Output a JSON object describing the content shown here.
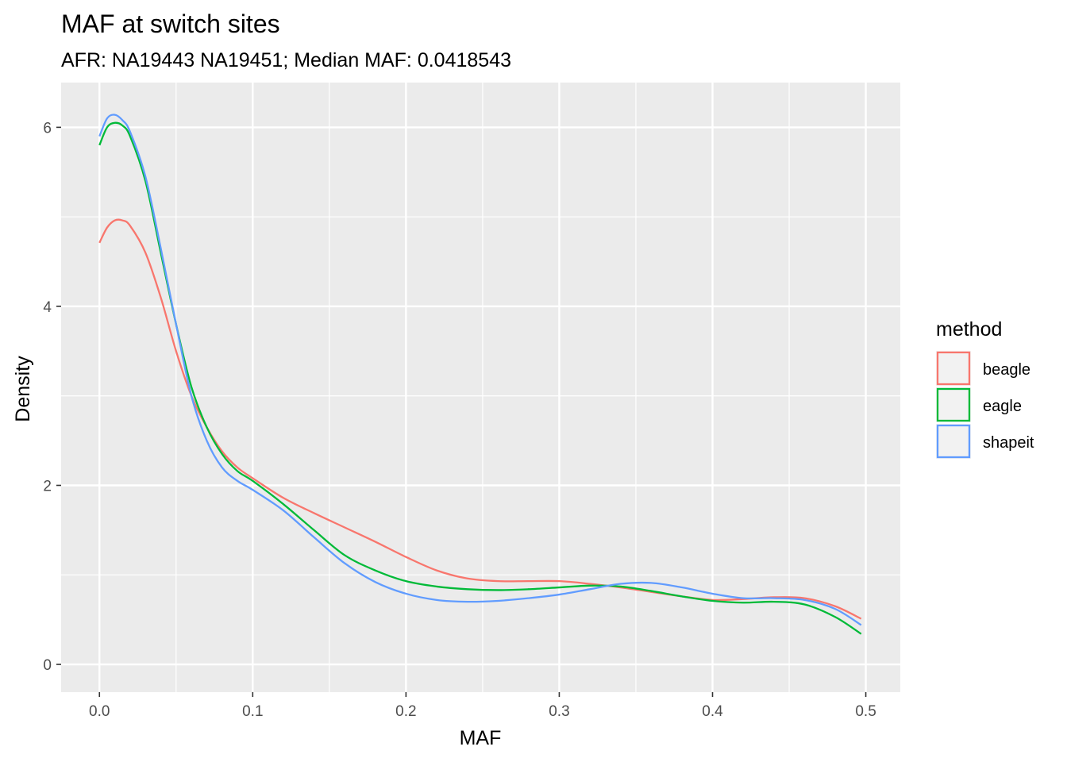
{
  "chart_data": {
    "type": "line",
    "title": "MAF at switch sites",
    "subtitle": "AFR: NA19443 NA19451; Median MAF: 0.0418543",
    "xlabel": "MAF",
    "ylabel": "Density",
    "xlim": [
      -0.025,
      0.5225
    ],
    "ylim": [
      -0.31,
      6.5
    ],
    "x_ticks": [
      0.0,
      0.1,
      0.2,
      0.3,
      0.4,
      0.5
    ],
    "x_tick_labels": [
      "0.0",
      "0.1",
      "0.2",
      "0.3",
      "0.4",
      "0.5"
    ],
    "y_ticks": [
      0,
      2,
      4,
      6
    ],
    "y_tick_labels": [
      "0",
      "2",
      "4",
      "6"
    ],
    "grid": true,
    "legend": {
      "title": "method",
      "position": "right"
    },
    "series": [
      {
        "name": "beagle",
        "color": "#F8766D",
        "x": [
          0.0,
          0.005,
          0.01,
          0.015,
          0.02,
          0.03,
          0.04,
          0.05,
          0.06,
          0.07,
          0.08,
          0.09,
          0.1,
          0.12,
          0.14,
          0.16,
          0.18,
          0.2,
          0.22,
          0.24,
          0.26,
          0.28,
          0.3,
          0.32,
          0.34,
          0.36,
          0.38,
          0.4,
          0.42,
          0.44,
          0.46,
          0.48,
          0.497
        ],
        "y": [
          4.71,
          4.88,
          4.96,
          4.96,
          4.9,
          4.6,
          4.1,
          3.5,
          3.0,
          2.65,
          2.38,
          2.2,
          2.08,
          1.86,
          1.69,
          1.53,
          1.37,
          1.2,
          1.05,
          0.96,
          0.93,
          0.93,
          0.93,
          0.9,
          0.86,
          0.81,
          0.76,
          0.72,
          0.73,
          0.75,
          0.74,
          0.65,
          0.51
        ]
      },
      {
        "name": "eagle",
        "color": "#00BA38",
        "x": [
          0.0,
          0.005,
          0.01,
          0.015,
          0.02,
          0.03,
          0.04,
          0.05,
          0.06,
          0.07,
          0.08,
          0.09,
          0.1,
          0.12,
          0.14,
          0.16,
          0.18,
          0.2,
          0.22,
          0.24,
          0.26,
          0.28,
          0.3,
          0.32,
          0.34,
          0.36,
          0.38,
          0.4,
          0.42,
          0.44,
          0.46,
          0.48,
          0.497
        ],
        "y": [
          5.8,
          6.0,
          6.05,
          6.02,
          5.9,
          5.4,
          4.6,
          3.8,
          3.1,
          2.65,
          2.35,
          2.16,
          2.05,
          1.79,
          1.5,
          1.22,
          1.05,
          0.93,
          0.87,
          0.84,
          0.83,
          0.84,
          0.86,
          0.88,
          0.87,
          0.82,
          0.76,
          0.71,
          0.69,
          0.7,
          0.67,
          0.53,
          0.34
        ]
      },
      {
        "name": "shapeit",
        "color": "#619CFF",
        "x": [
          0.0,
          0.005,
          0.01,
          0.015,
          0.02,
          0.03,
          0.04,
          0.05,
          0.06,
          0.07,
          0.08,
          0.09,
          0.1,
          0.12,
          0.14,
          0.16,
          0.18,
          0.2,
          0.22,
          0.24,
          0.26,
          0.28,
          0.3,
          0.32,
          0.34,
          0.36,
          0.38,
          0.4,
          0.42,
          0.44,
          0.46,
          0.48,
          0.497
        ],
        "y": [
          5.9,
          6.1,
          6.14,
          6.08,
          5.95,
          5.45,
          4.65,
          3.8,
          3.0,
          2.5,
          2.2,
          2.05,
          1.95,
          1.72,
          1.42,
          1.13,
          0.92,
          0.79,
          0.72,
          0.7,
          0.71,
          0.74,
          0.78,
          0.84,
          0.9,
          0.91,
          0.86,
          0.79,
          0.74,
          0.74,
          0.72,
          0.62,
          0.44
        ]
      }
    ]
  }
}
